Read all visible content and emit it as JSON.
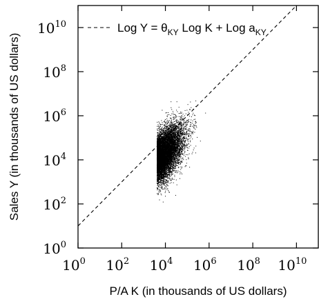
{
  "chart_data": {
    "type": "scatter",
    "title": "",
    "xlabel": "P/A K (in thousands of US dollars)",
    "ylabel": "Sales Y (in thousands of US dollars)",
    "x_scale": "log10",
    "y_scale": "log10",
    "xlim": [
      1,
      100000000000
    ],
    "ylim": [
      1,
      100000000000
    ],
    "x_ticks": [
      {
        "base": "10",
        "exp": "0",
        "value": 1
      },
      {
        "base": "10",
        "exp": "2",
        "value": 100
      },
      {
        "base": "10",
        "exp": "4",
        "value": 10000
      },
      {
        "base": "10",
        "exp": "6",
        "value": 1000000
      },
      {
        "base": "10",
        "exp": "8",
        "value": 100000000
      },
      {
        "base": "10",
        "exp": "10",
        "value": 10000000000
      }
    ],
    "y_ticks": [
      {
        "base": "10",
        "exp": "0",
        "value": 1
      },
      {
        "base": "10",
        "exp": "2",
        "value": 100
      },
      {
        "base": "10",
        "exp": "4",
        "value": 10000
      },
      {
        "base": "10",
        "exp": "6",
        "value": 1000000
      },
      {
        "base": "10",
        "exp": "8",
        "value": 100000000
      },
      {
        "base": "10",
        "exp": "10",
        "value": 10000000000
      }
    ],
    "legend": {
      "position": "top-right",
      "label_main": "Log Y = θ",
      "label_sub1": "KY",
      "label_mid": " Log K + Log a",
      "label_sub2": "KY"
    },
    "fit_line": {
      "style": "dashed",
      "slope_log": 1.0,
      "intercept_log": 1.0,
      "x_range": [
        1,
        100000000000
      ]
    },
    "scatter_summary": {
      "x_min": 4000,
      "x_center": 15000,
      "x_max": 5000000,
      "y_min": 5,
      "y_center": 30000,
      "y_max": 5000000,
      "n_points_drawn": 9000
    },
    "grid": false,
    "colors": {
      "points": "#000000",
      "line": "#000000"
    }
  }
}
